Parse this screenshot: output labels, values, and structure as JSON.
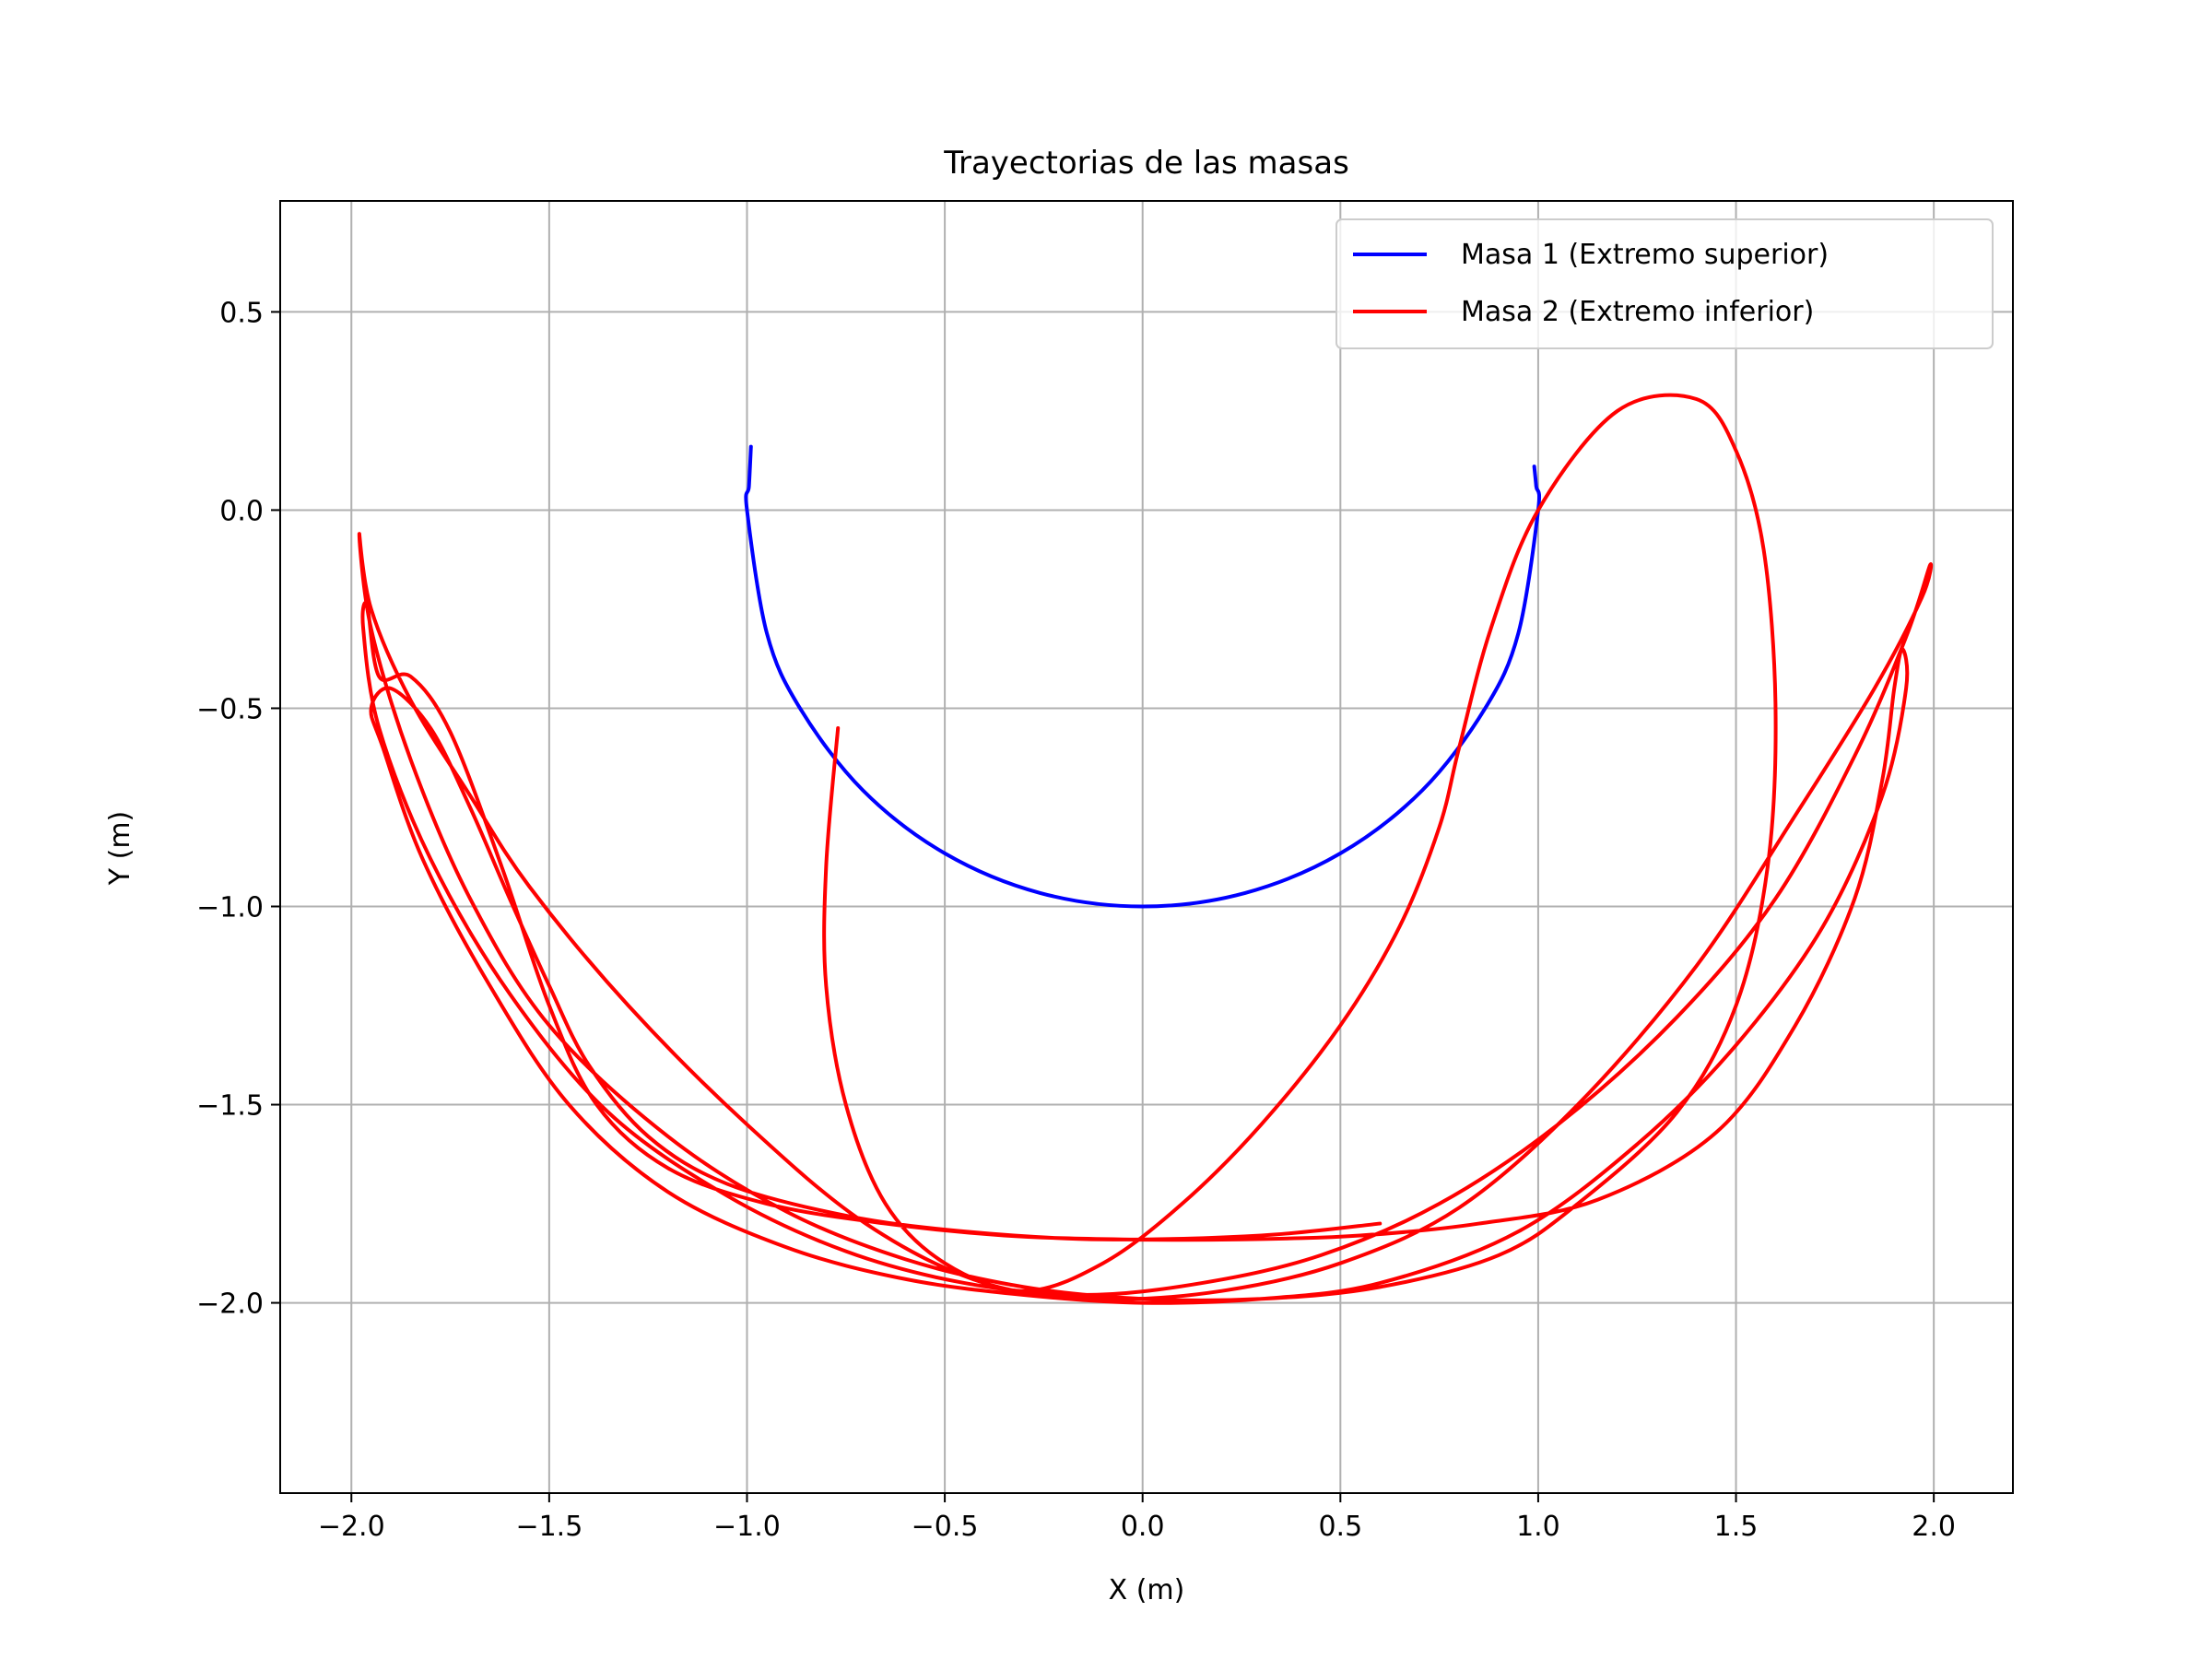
{
  "chart_data": {
    "type": "line",
    "title": "Trayectorias de las masas",
    "xlabel": "X (m)",
    "ylabel": "Y (m)",
    "xlim": [
      -2.18,
      2.2
    ],
    "ylim": [
      -2.48,
      0.78
    ],
    "x_ticks": [
      -2.0,
      -1.5,
      -1.0,
      -0.5,
      0.0,
      0.5,
      1.0,
      1.5,
      2.0
    ],
    "x_tick_labels": [
      "−2.0",
      "−1.5",
      "−1.0",
      "−0.5",
      "0.0",
      "0.5",
      "1.0",
      "1.5",
      "2.0"
    ],
    "y_ticks": [
      0.5,
      0.0,
      -0.5,
      -1.0,
      -1.5,
      -2.0
    ],
    "y_tick_labels": [
      "0.5",
      "0.0",
      "−0.5",
      "−1.0",
      "−1.5",
      "−2.0"
    ],
    "grid": true,
    "legend_position": "top-right",
    "series": [
      {
        "name": "Masa 1 (Extremo superior)",
        "color": "#0000ff",
        "x": [
          -0.99,
          -0.995,
          -1.0,
          -0.95,
          -0.866,
          -0.707,
          -0.5,
          -0.259,
          0.0,
          0.259,
          0.5,
          0.707,
          0.866,
          0.95,
          1.0,
          0.995,
          0.99
        ],
        "y": [
          0.16,
          0.06,
          0.0,
          -0.31,
          -0.5,
          -0.707,
          -0.866,
          -0.966,
          -1.0,
          -0.966,
          -0.866,
          -0.707,
          -0.5,
          -0.31,
          0.0,
          0.06,
          0.11
        ]
      },
      {
        "name": "Masa 2 (Extremo inferior)",
        "color": "#ff0000",
        "x": [
          -0.77,
          -0.8,
          -0.8,
          -0.75,
          -0.65,
          -0.5,
          -0.3,
          -0.1,
          0.1,
          0.3,
          0.5,
          0.65,
          0.75,
          0.8,
          0.88,
          1.0,
          1.2,
          1.4,
          1.5,
          1.57,
          1.6,
          1.58,
          1.5,
          1.35,
          1.1,
          0.9,
          0.6,
          0.3,
          0.0,
          -0.3,
          -0.6,
          -0.9,
          -1.2,
          -1.5,
          -1.7,
          -1.85,
          -1.95,
          -1.98,
          -1.95,
          -1.85,
          -1.7,
          -1.55,
          -1.3,
          -1.0,
          -0.7,
          -0.4,
          -0.1,
          0.2,
          0.5,
          0.8,
          1.1,
          1.4,
          1.65,
          1.85,
          1.97,
          1.99,
          1.93,
          1.8,
          1.6,
          1.35,
          1.05,
          0.75,
          0.45,
          0.15,
          -0.15,
          -0.45,
          -0.75,
          -1.05,
          -1.35,
          -1.6,
          -1.8,
          -1.93,
          -1.97,
          -1.96,
          -1.93,
          -1.85,
          -1.75,
          -1.62,
          -1.5,
          -1.38,
          -1.2,
          -0.95,
          -0.65,
          -0.35,
          -0.05,
          0.25,
          0.55,
          0.85,
          1.15,
          1.45,
          1.65,
          1.8,
          1.87,
          1.9,
          1.92,
          1.93,
          1.87,
          1.72,
          1.5,
          1.25,
          0.95,
          0.6,
          0.3,
          0.0,
          -0.3,
          -0.6,
          -0.9,
          -1.2,
          -1.45,
          -1.65,
          -1.82,
          -1.92,
          -1.95,
          -1.9,
          -1.8,
          -1.7,
          -1.6,
          -1.5,
          -1.4,
          -1.25,
          -1.05,
          -0.75,
          -0.45,
          -0.1,
          0.3,
          0.6
        ],
        "y": [
          -0.55,
          -0.9,
          -1.2,
          -1.5,
          -1.75,
          -1.9,
          -1.97,
          -1.9,
          -1.75,
          -1.55,
          -1.3,
          -1.05,
          -0.8,
          -0.6,
          -0.3,
          -0.0,
          0.25,
          0.28,
          0.15,
          -0.1,
          -0.5,
          -0.9,
          -1.25,
          -1.52,
          -1.75,
          -1.88,
          -1.96,
          -1.99,
          -1.99,
          -1.96,
          -1.89,
          -1.77,
          -1.58,
          -1.3,
          -0.98,
          -0.63,
          -0.3,
          -0.06,
          -0.25,
          -0.48,
          -0.72,
          -0.95,
          -1.25,
          -1.55,
          -1.8,
          -1.95,
          -1.99,
          -1.97,
          -1.9,
          -1.76,
          -1.5,
          -1.15,
          -0.77,
          -0.45,
          -0.22,
          -0.14,
          -0.32,
          -0.62,
          -0.98,
          -1.28,
          -1.55,
          -1.75,
          -1.88,
          -1.95,
          -1.98,
          -1.95,
          -1.87,
          -1.73,
          -1.52,
          -1.22,
          -0.88,
          -0.55,
          -0.3,
          -0.24,
          -0.42,
          -0.42,
          -0.56,
          -0.9,
          -1.25,
          -1.5,
          -1.66,
          -1.75,
          -1.8,
          -1.83,
          -1.84,
          -1.84,
          -1.83,
          -1.8,
          -1.74,
          -1.57,
          -1.3,
          -0.98,
          -0.68,
          -0.45,
          -0.35,
          -0.45,
          -0.72,
          -1.05,
          -1.35,
          -1.6,
          -1.82,
          -1.95,
          -1.99,
          -2.0,
          -1.98,
          -1.94,
          -1.86,
          -1.72,
          -1.5,
          -1.2,
          -0.88,
          -0.6,
          -0.5,
          -0.45,
          -0.55,
          -0.75,
          -0.98,
          -1.2,
          -1.4,
          -1.58,
          -1.7,
          -1.78,
          -1.82,
          -1.84,
          -1.83,
          -1.8
        ]
      }
    ]
  }
}
